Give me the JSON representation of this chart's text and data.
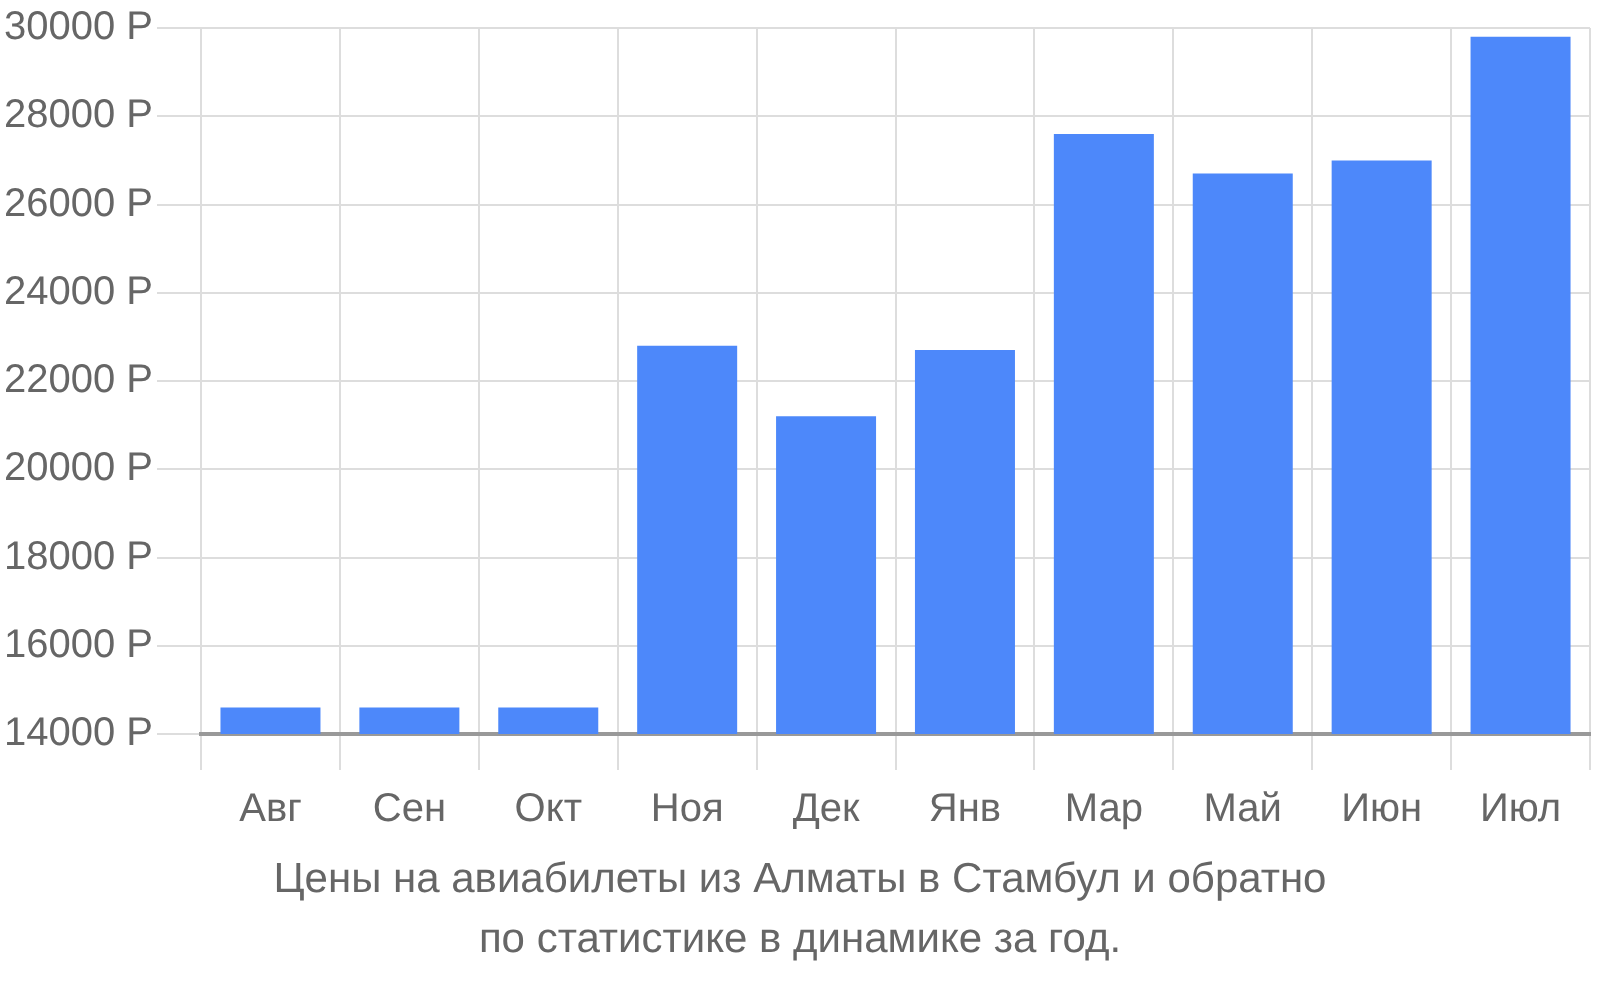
{
  "chart_data": {
    "type": "bar",
    "categories": [
      "Авг",
      "Сен",
      "Окт",
      "Ноя",
      "Дек",
      "Янв",
      "Мар",
      "Май",
      "Июн",
      "Июл"
    ],
    "values": [
      14600,
      14600,
      14600,
      22800,
      21200,
      22700,
      27600,
      26700,
      27000,
      29800
    ],
    "color": "#4d88fa",
    "ylim": [
      14000,
      30000
    ],
    "yticks": [
      {
        "value": 14000,
        "label": "14000 Р"
      },
      {
        "value": 16000,
        "label": "16000 Р"
      },
      {
        "value": 18000,
        "label": "18000 Р"
      },
      {
        "value": 20000,
        "label": "20000 Р"
      },
      {
        "value": 22000,
        "label": "22000 Р"
      },
      {
        "value": 24000,
        "label": "24000 Р"
      },
      {
        "value": 26000,
        "label": "26000 Р"
      },
      {
        "value": 28000,
        "label": "28000 Р"
      },
      {
        "value": 30000,
        "label": "30000 Р"
      }
    ],
    "grid": true,
    "annotations": [
      "Цены на авиабилеты из Алматы в Стамбул и обратно",
      "по статистике в динамике за год."
    ]
  }
}
